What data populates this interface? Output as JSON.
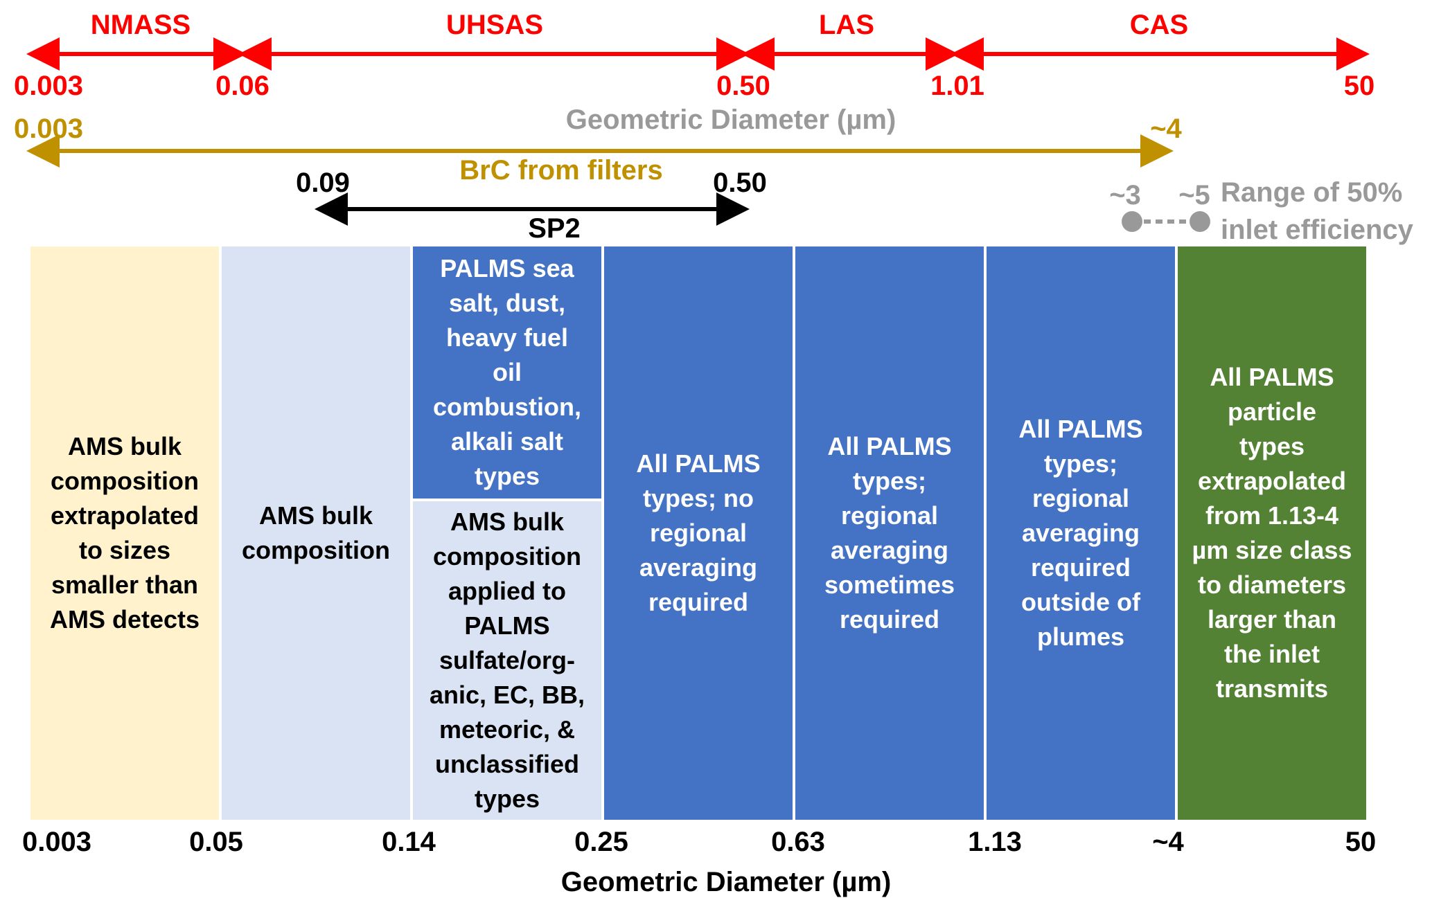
{
  "instruments": {
    "nmass": "NMASS",
    "uhsas": "UHSAS",
    "las": "LAS",
    "cas": "CAS"
  },
  "instrument_ticks": [
    "0.003",
    "0.06",
    "0.50",
    "1.01",
    "50"
  ],
  "top_axis_label": "Geometric Diameter (µm)",
  "brc": {
    "label": "BrC from filters",
    "start": "0.003",
    "end": "~4"
  },
  "sp2": {
    "label": "SP2",
    "start": "0.09",
    "end": "0.50"
  },
  "inlet": {
    "low": "~3",
    "high": "~5",
    "label_line1": "Range of 50%",
    "label_line2": "inlet efficiency"
  },
  "boxes": {
    "b1": "AMS bulk\ncomposition\nextrapolated\nto sizes\nsmaller than\nAMS detects",
    "b2": "AMS bulk\ncomposition",
    "b3_top": "PALMS sea\nsalt, dust,\nheavy fuel\noil\ncombustion,\nalkali salt\ntypes",
    "b3_bottom": "AMS bulk\ncomposition\napplied to\nPALMS\nsulfate/org-\nanic, EC, BB,\nmeteoric, &\nunclassified\ntypes",
    "b4": "All PALMS\ntypes; no\nregional\naveraging\nrequired",
    "b5": "All PALMS\ntypes;\nregional\naveraging\nsometimes\nrequired",
    "b6": "All PALMS\ntypes;\nregional\naveraging\nrequired\noutside of\nplumes",
    "b7": "All PALMS\nparticle\ntypes\nextrapolated\nfrom 1.13-4\nµm size class\nto diameters\nlarger than\nthe inlet\ntransmits"
  },
  "bottom_ticks": [
    "0.003",
    "0.05",
    "0.14",
    "0.25",
    "0.63",
    "1.13",
    "~4",
    "50"
  ],
  "bottom_axis_label": "Geometric Diameter (µm)",
  "colors": {
    "instrument_red": "#ff0000",
    "brc_gold": "#bf9000",
    "inlet_grey": "#999999",
    "box_yellow": "#fff2cc",
    "box_lightblue": "#dae3f3",
    "box_blue": "#4472c4",
    "box_green": "#548235"
  }
}
